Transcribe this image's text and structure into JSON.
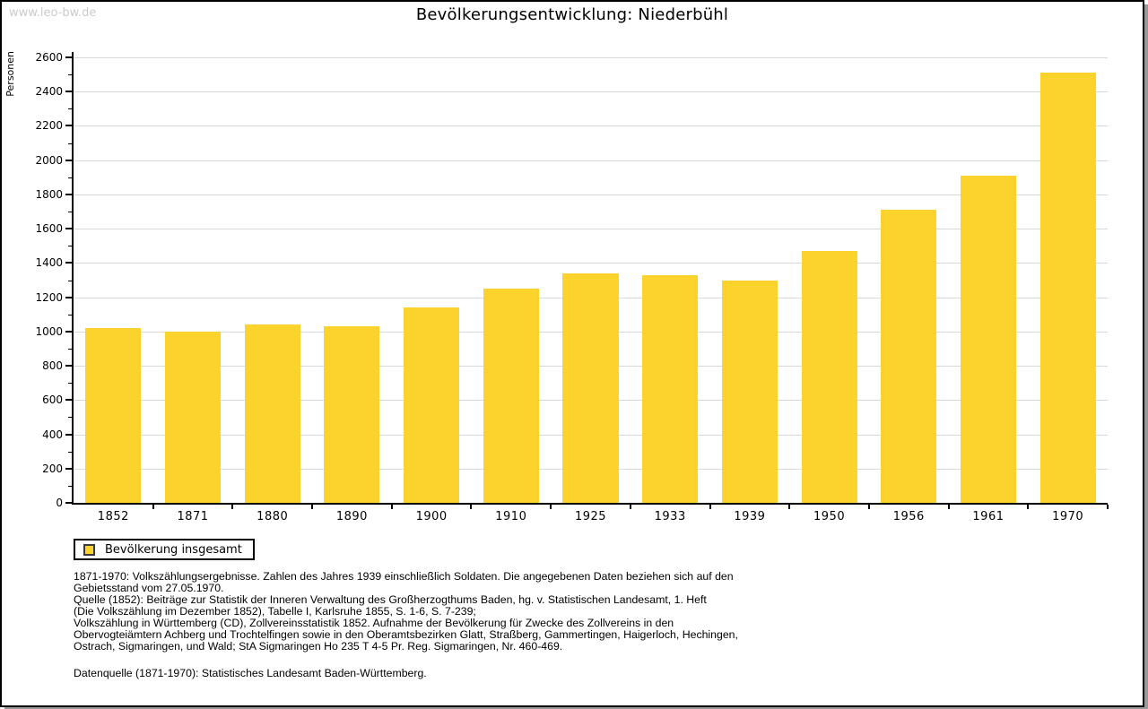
{
  "watermark": "www.leo-bw.de",
  "chart_data": {
    "type": "bar",
    "title": "Bevölkerungsentwicklung: Niederbühl",
    "xlabel": "",
    "ylabel": "Personen",
    "categories": [
      "1852",
      "1871",
      "1880",
      "1890",
      "1900",
      "1910",
      "1925",
      "1933",
      "1939",
      "1950",
      "1956",
      "1961",
      "1970"
    ],
    "series": [
      {
        "name": "Bevölkerung insgesamt",
        "color": "#fcd32d",
        "values": [
          1020,
          1000,
          1040,
          1030,
          1140,
          1250,
          1340,
          1330,
          1300,
          1470,
          1710,
          1910,
          2510
        ]
      }
    ],
    "ylim": [
      0,
      2600
    ],
    "yticks": [
      0,
      200,
      400,
      600,
      800,
      1000,
      1200,
      1400,
      1600,
      1800,
      2000,
      2200,
      2400,
      2600
    ],
    "ytick_minor_step": 100,
    "grid": "horizontal",
    "legend_position": "bottom-left"
  },
  "legend": {
    "items": [
      {
        "label": "Bevölkerung insgesamt",
        "color": "#fcd32d"
      }
    ]
  },
  "notes": {
    "lines": [
      "1871-1970: Volkszählungsergebnisse. Zahlen des Jahres 1939 einschließlich Soldaten. Die angegebenen Daten beziehen sich auf den",
      "Gebietsstand vom 27.05.1970.",
      "Quelle (1852): Beiträge zur Statistik der Inneren Verwaltung des Großherzogthums Baden, hg. v. Statistischen Landesamt, 1. Heft",
      "(Die Volkszählung im Dezember 1852), Tabelle I, Karlsruhe 1855, S. 1-6, S. 7-239;",
      "Volkszählung in Württemberg (CD), Zollvereinsstatistik 1852. Aufnahme der Bevölkerung für Zwecke des Zollvereins in den",
      "Obervogteiämtern Achberg und Trochtelfingen sowie in den Oberamtsbezirken Glatt, Straßberg, Gammertingen, Haigerloch, Hechingen,",
      "Ostrach, Sigmaringen, und Wald; StA Sigmaringen Ho 235 T 4-5 Pr. Reg. Sigmaringen, Nr. 460-469."
    ],
    "datasource": "Datenquelle (1871-1970): Statistisches Landesamt Baden-Württemberg."
  },
  "colors": {
    "bar": "#fcd32d",
    "gridline": "#d8d8d8",
    "watermark": "#cbcbcb",
    "shadow": "#9a9a9a"
  }
}
